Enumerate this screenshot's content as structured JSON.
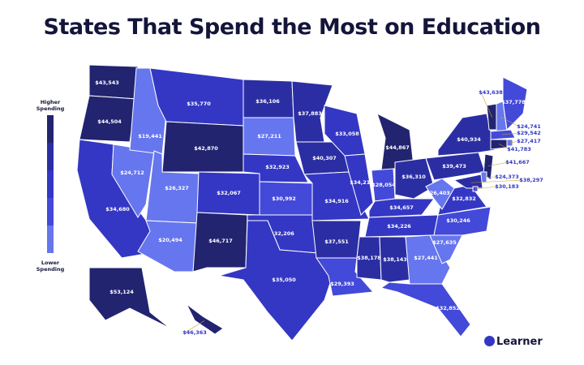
{
  "title": "States That Spend the Most on Education",
  "legend": {
    "high": "Higher Spending",
    "low": "Lower Spending",
    "colors": [
      "#222470",
      "#2b2ea3",
      "#3437c4",
      "#4349d9",
      "#6676ee"
    ]
  },
  "brand": "Learner",
  "states": [
    {
      "label": "$43,543",
      "color": "#222470"
    },
    {
      "label": "$44,504",
      "color": "#222470"
    },
    {
      "label": "$34,680",
      "color": "#3437c4"
    },
    {
      "label": "$24,712",
      "color": "#6676ee"
    },
    {
      "label": "$19,441",
      "color": "#6676ee"
    },
    {
      "label": "$35,770",
      "color": "#3437c4"
    },
    {
      "label": "$42,870",
      "color": "#222470"
    },
    {
      "label": "$26,327",
      "color": "#6676ee"
    },
    {
      "label": "$20,494",
      "color": "#6676ee"
    },
    {
      "label": "$32,067",
      "color": "#3437c4"
    },
    {
      "label": "$46,717",
      "color": "#222470"
    },
    {
      "label": "$36,106",
      "color": "#2b2ea3"
    },
    {
      "label": "$27,211",
      "color": "#6676ee"
    },
    {
      "label": "$32,923",
      "color": "#3437c4"
    },
    {
      "label": "$30,992",
      "color": "#4349d9"
    },
    {
      "label": "$32,206",
      "color": "#3437c4"
    },
    {
      "label": "$35,050",
      "color": "#3437c4"
    },
    {
      "label": "$37,883",
      "color": "#2b2ea3"
    },
    {
      "label": "$40,307",
      "color": "#2b2ea3"
    },
    {
      "label": "$34,916",
      "color": "#3437c4"
    },
    {
      "label": "$37,551",
      "color": "#2b2ea3"
    },
    {
      "label": "$29,393",
      "color": "#4349d9"
    },
    {
      "label": "$33,058",
      "color": "#3437c4"
    },
    {
      "label": "$34,216",
      "color": "#3437c4"
    },
    {
      "label": "$44,867",
      "color": "#222470"
    },
    {
      "label": "$28,054",
      "color": "#4349d9"
    },
    {
      "label": "$36,310",
      "color": "#2b2ea3"
    },
    {
      "label": "$34,657",
      "color": "#3437c4"
    },
    {
      "label": "$34,226",
      "color": "#3437c4"
    },
    {
      "label": "$38,178",
      "color": "#2b2ea3"
    },
    {
      "label": "$38,143",
      "color": "#2b2ea3"
    },
    {
      "label": "$27,441",
      "color": "#6676ee"
    },
    {
      "label": "$32,852",
      "color": "#4349d9"
    },
    {
      "label": "$27,635",
      "color": "#6676ee"
    },
    {
      "label": "$30,246",
      "color": "#4349d9"
    },
    {
      "label": "$32,832",
      "color": "#3437c4"
    },
    {
      "label": "$26,403",
      "color": "#6676ee"
    },
    {
      "label": "$39,473",
      "color": "#2b2ea3"
    },
    {
      "label": "$40,934",
      "color": "#2b2ea3"
    },
    {
      "label": "$37,778",
      "color": "#4349d9"
    },
    {
      "label": "$43,638",
      "color": "#222470"
    },
    {
      "label": "$24,741",
      "color": "#6676ee"
    },
    {
      "label": "$29,542",
      "color": "#4349d9"
    },
    {
      "label": "$27,417",
      "color": "#6676ee"
    },
    {
      "label": "$41,783",
      "color": "#222470"
    },
    {
      "label": "$41,667",
      "color": "#222470"
    },
    {
      "label": "$24,373",
      "color": "#6676ee"
    },
    {
      "label": "$38,297",
      "color": "#2b2ea3"
    },
    {
      "label": "$30,183",
      "color": "#4349d9"
    },
    {
      "label": "$53,124",
      "color": "#222470"
    },
    {
      "label": "$46,363",
      "color": "#222470"
    }
  ]
}
